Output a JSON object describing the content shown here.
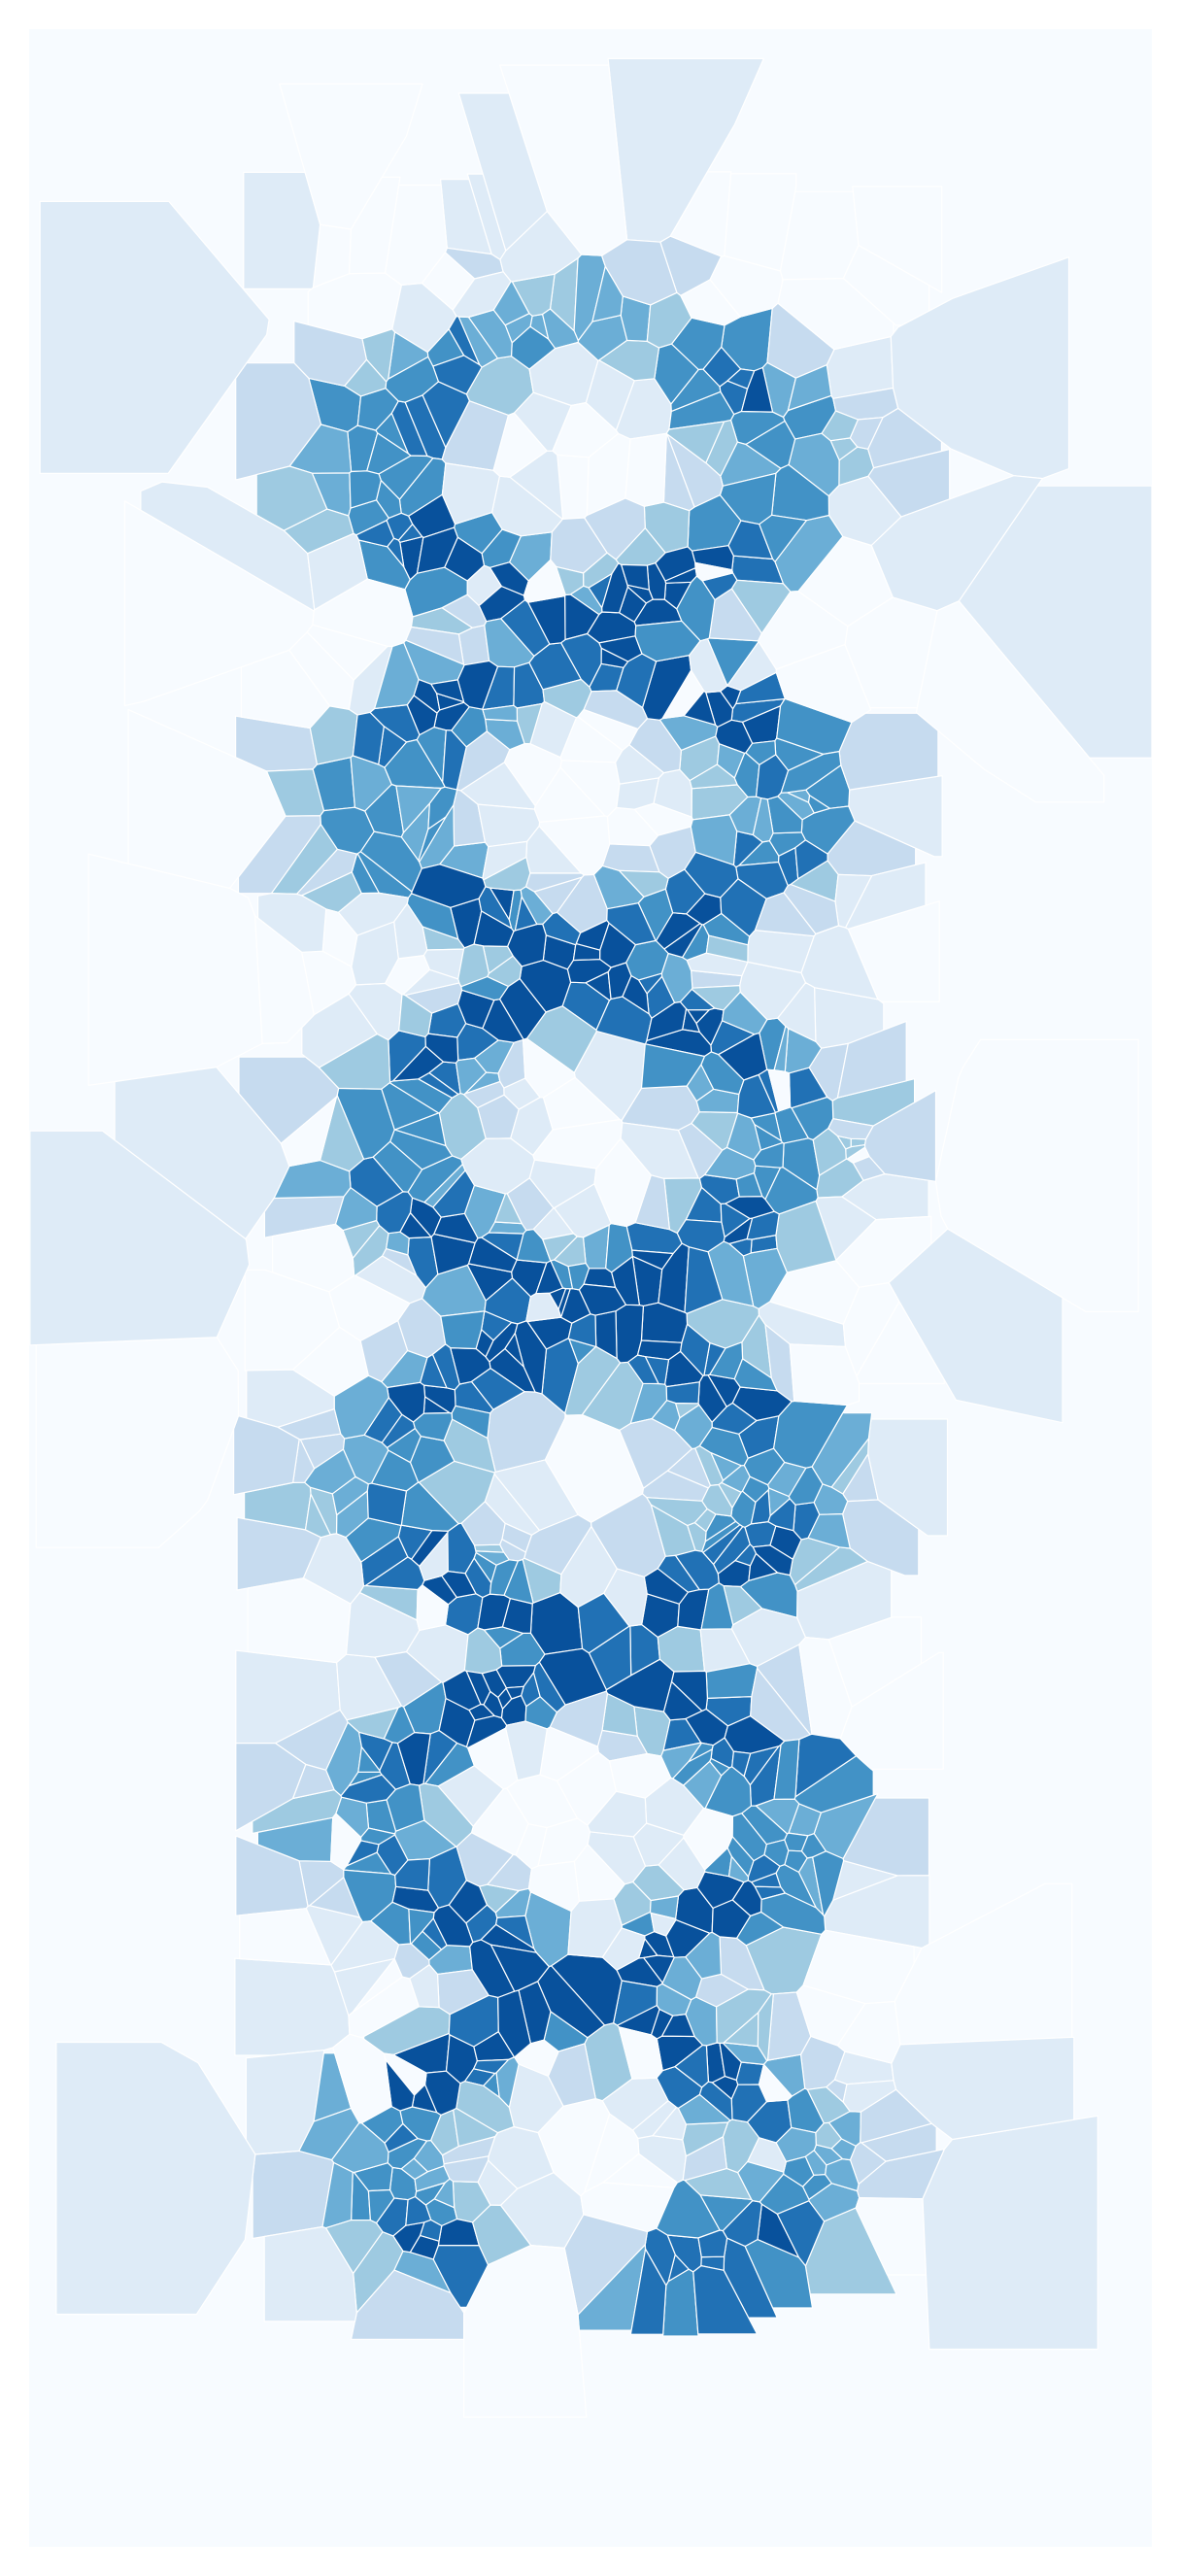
{
  "figure": {
    "kind": "voronoi-heatmap",
    "colormap": "Blues",
    "background_color": "#f7fbff",
    "palette": [
      "#f7fbff",
      "#deebf7",
      "#c6dbef",
      "#9ecae1",
      "#6baed6",
      "#4292c6",
      "#2171b5",
      "#08519c"
    ]
  }
}
